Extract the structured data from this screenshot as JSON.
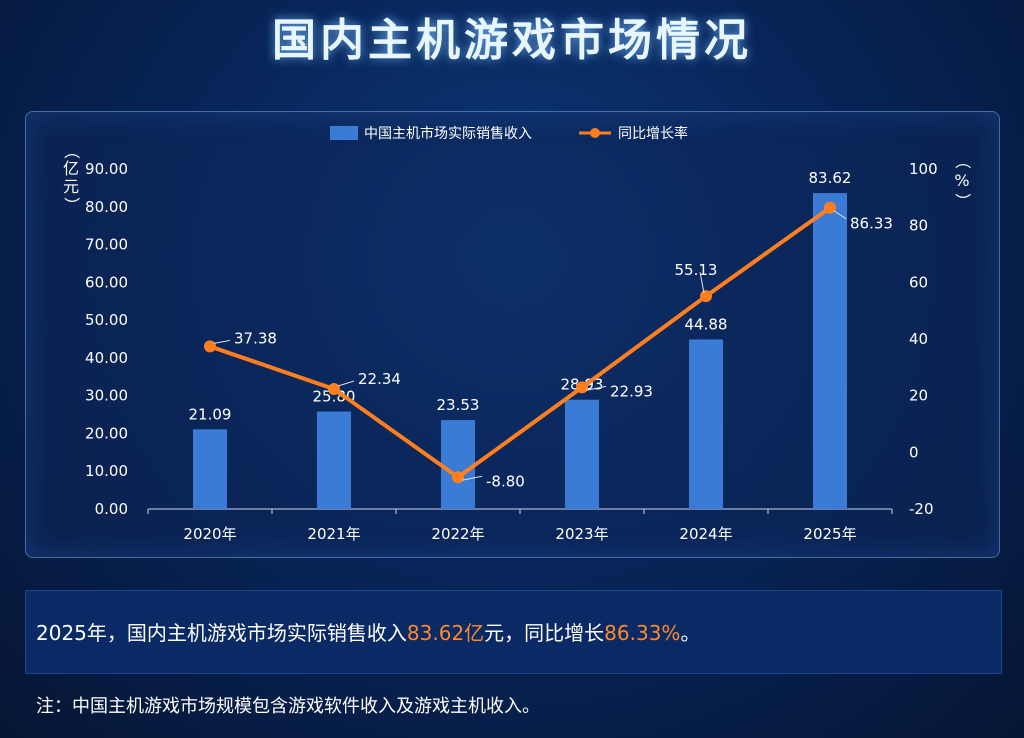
{
  "title": "国内主机游戏市场情况",
  "chart_data": {
    "type": "bar+line",
    "categories": [
      "2020年",
      "2021年",
      "2022年",
      "2023年",
      "2024年",
      "2025年"
    ],
    "series": [
      {
        "name": "中国主机市场实际销售收入",
        "type": "bar",
        "axis": "left",
        "values": [
          21.09,
          25.8,
          23.53,
          28.93,
          44.88,
          83.62
        ],
        "labels": [
          "21.09",
          "25.80",
          "23.53",
          "28.93",
          "44.88",
          "83.62"
        ],
        "color": "#3a7bd5"
      },
      {
        "name": "同比增长率",
        "type": "line",
        "axis": "right",
        "values": [
          37.38,
          22.34,
          -8.8,
          22.93,
          55.13,
          86.33
        ],
        "labels": [
          "37.38",
          "22.34",
          "-8.80",
          "22.93",
          "55.13",
          "86.33"
        ],
        "color": "#ff7f1f"
      }
    ],
    "y_left": {
      "label": "（亿元）",
      "range": [
        0,
        90
      ],
      "ticks": [
        "0.00",
        "10.00",
        "20.00",
        "30.00",
        "40.00",
        "50.00",
        "60.00",
        "70.00",
        "80.00",
        "90.00"
      ]
    },
    "y_right": {
      "label": "（%）",
      "range": [
        -20,
        100
      ],
      "ticks": [
        "-20",
        "0",
        "20",
        "40",
        "60",
        "80",
        "100"
      ]
    },
    "legend_position": "top-center",
    "grid": false
  },
  "summary": {
    "prefix": "2025年，国内主机游戏市场实际销售收入",
    "revenue": "83.62亿",
    "middle": "元，同比增长",
    "growth": "86.33%",
    "suffix": "。"
  },
  "note": "注：中国主机游戏市场规模包含游戏软件收入及游戏主机收入。"
}
